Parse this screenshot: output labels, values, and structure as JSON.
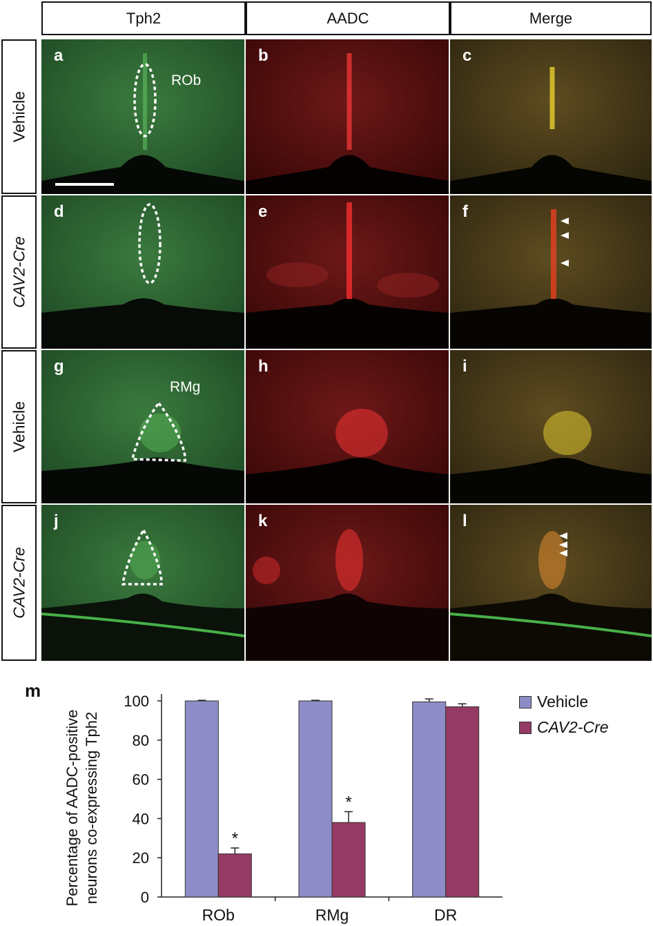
{
  "columns": [
    "Tph2",
    "AADC",
    "Merge"
  ],
  "rows": [
    {
      "label": "Vehicle",
      "italic": false
    },
    {
      "label": "CAV2-Cre",
      "italic": true
    },
    {
      "label": "Vehicle",
      "italic": false
    },
    {
      "label": "CAV2-Cre",
      "italic": true
    }
  ],
  "panels": {
    "letters": [
      "a",
      "b",
      "c",
      "d",
      "e",
      "f",
      "g",
      "h",
      "i",
      "j",
      "k",
      "l"
    ],
    "region_labels": {
      "rob": "ROb",
      "rmg": "RMg"
    }
  },
  "colors": {
    "green_tissue": "#2f6a34",
    "red_tissue": "#6a1414",
    "merge_tissue": "#5a4a1e",
    "vehicle_bar": "#8e8cc6",
    "cre_bar": "#953a64"
  },
  "chart_data": {
    "type": "bar",
    "panel_label": "m",
    "categories": [
      "ROb",
      "RMg",
      "DR"
    ],
    "series": [
      {
        "name": "Vehicle",
        "values": [
          100,
          100,
          99.5
        ],
        "errors": [
          0.3,
          0.3,
          1.5
        ],
        "color": "#8e8cc6"
      },
      {
        "name": "CAV2-Cre",
        "values": [
          22,
          38,
          97
        ],
        "errors": [
          3,
          5.5,
          1.5
        ],
        "color": "#953a64"
      }
    ],
    "significance": [
      "*",
      "*",
      ""
    ],
    "ylabel_lines": [
      "Percentage of AADC-positive",
      "neurons co-expressing Tph2"
    ],
    "ylim": [
      0,
      100
    ],
    "yticks": [
      "0",
      "20",
      "40",
      "60",
      "80",
      "100"
    ],
    "legend_position": "top-right"
  }
}
